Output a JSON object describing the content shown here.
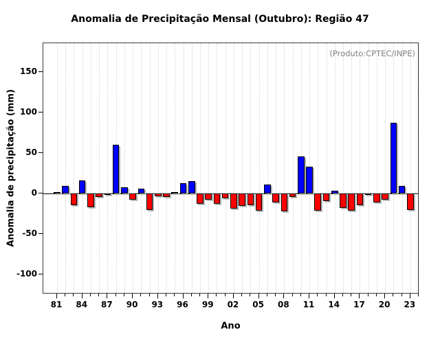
{
  "title": "Anomalia de Precipitação Mensal (Outubro): Região 47",
  "annotation": "(Produto:CPTEC/INPE)",
  "chart_data": {
    "type": "bar",
    "title": "Anomalia de Precipitação Mensal (Outubro): Região 47",
    "xlabel": "Ano",
    "ylabel": "Anomalia de precipitação (mm)",
    "annotation": "(Produto:CPTEC/INPE)",
    "years": [
      1981,
      1982,
      1983,
      1984,
      1985,
      1986,
      1987,
      1988,
      1989,
      1990,
      1991,
      1992,
      1993,
      1994,
      1995,
      1996,
      1997,
      1998,
      1999,
      2000,
      2001,
      2002,
      2003,
      2004,
      2005,
      2006,
      2007,
      2008,
      2009,
      2010,
      2011,
      2012,
      2013,
      2014,
      2015,
      2016,
      2017,
      2018,
      2019,
      2020,
      2021,
      2022,
      2023
    ],
    "values": [
      2,
      9,
      -14,
      16,
      -17,
      -4,
      -2,
      60,
      8,
      -8,
      6,
      -20,
      -3,
      -4,
      2,
      13,
      15,
      -13,
      -8,
      -13,
      -6,
      -19,
      -15,
      -14,
      -21,
      11,
      -11,
      -22,
      -4,
      46,
      33,
      -21,
      -9,
      3,
      -18,
      -21,
      -14,
      -1,
      -11,
      -8,
      87,
      9,
      -20
    ],
    "x_ticks": {
      "start_year": 1981,
      "end_year": 2024,
      "label_every": 3,
      "labels": [
        "81",
        "84",
        "87",
        "90",
        "93",
        "96",
        "99",
        "02",
        "05",
        "08",
        "11",
        "14",
        "17",
        "20",
        "23"
      ]
    },
    "yticks": [
      -100,
      -50,
      0,
      50,
      100,
      150
    ],
    "ylim": [
      -124.6,
      185.6
    ],
    "positive_color": "#0000ff",
    "negative_color": "#ff0000",
    "bar_border_color": "#000000",
    "grid": "vertical-dotted",
    "legend": "none"
  }
}
